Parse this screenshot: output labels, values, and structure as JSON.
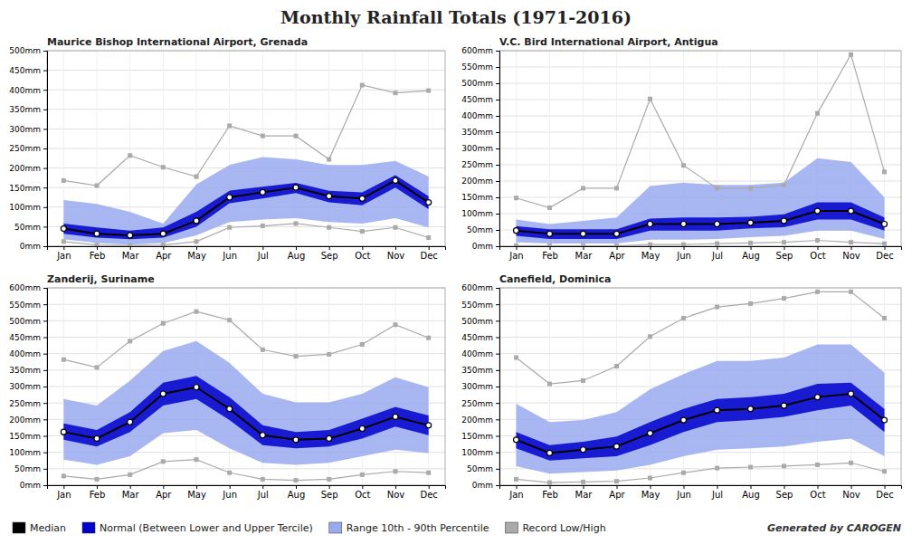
{
  "title": "Monthly Rainfall Totals (1971-2016)",
  "annotations": [
    "Generated by CAROGEN"
  ],
  "chart_data": [
    {
      "type": "line",
      "title": "Maurice Bishop International Airport, Grenada",
      "categories": [
        "Jan",
        "Feb",
        "Mar",
        "Apr",
        "May",
        "Jun",
        "Jul",
        "Aug",
        "Sep",
        "Oct",
        "Nov",
        "Dec"
      ],
      "ylim": [
        0,
        500
      ],
      "yticks": [
        {
          "value": 0,
          "label": "0mm"
        },
        {
          "value": 50,
          "label": "50mm"
        },
        {
          "value": 100,
          "label": "100mm"
        },
        {
          "value": 150,
          "label": "150mm"
        },
        {
          "value": 200,
          "label": "200mm"
        },
        {
          "value": 250,
          "label": "250mm"
        },
        {
          "value": 300,
          "label": "300mm"
        },
        {
          "value": 350,
          "label": "350mm"
        },
        {
          "value": 400,
          "label": "400mm"
        },
        {
          "value": 450,
          "label": "450mm"
        },
        {
          "value": 500,
          "label": "500mm"
        }
      ],
      "grid": true,
      "legend": "bottom",
      "series": [
        {
          "name": "Median",
          "color": "#000000",
          "type": "line",
          "marker": "circle",
          "values": [
            45,
            32,
            28,
            32,
            65,
            125,
            138,
            150,
            128,
            122,
            168,
            112
          ]
        },
        {
          "name": "Normal (Between Lower and Upper Tercile)",
          "color": "#0000cc",
          "type": "area",
          "values": [
            58,
            48,
            40,
            48,
            88,
            142,
            152,
            162,
            142,
            138,
            182,
            128
          ],
          "low": [
            32,
            22,
            18,
            22,
            50,
            110,
            122,
            136,
            112,
            105,
            150,
            95
          ]
        },
        {
          "name": "Range 10th - 90th Percentile",
          "color": "#99aaee",
          "type": "area",
          "values": [
            118,
            108,
            88,
            58,
            158,
            208,
            228,
            222,
            208,
            208,
            218,
            178
          ],
          "low": [
            18,
            8,
            4,
            8,
            28,
            62,
            68,
            72,
            62,
            58,
            72,
            48
          ]
        },
        {
          "name": "Record Low/High",
          "color": "#aaaaaa",
          "type": "line",
          "marker": "square",
          "values": [
            168,
            155,
            232,
            202,
            178,
            308,
            282,
            282,
            222,
            412,
            392,
            398
          ],
          "low": [
            12,
            3,
            2,
            3,
            12,
            48,
            52,
            58,
            48,
            38,
            48,
            22
          ]
        }
      ]
    },
    {
      "type": "line",
      "title": "V.C. Bird International Airport, Antigua",
      "categories": [
        "Jan",
        "Feb",
        "Mar",
        "Apr",
        "May",
        "Jun",
        "Jul",
        "Aug",
        "Sep",
        "Oct",
        "Nov",
        "Dec"
      ],
      "ylim": [
        0,
        600
      ],
      "yticks": [
        {
          "value": 0,
          "label": "0mm"
        },
        {
          "value": 50,
          "label": "50mm"
        },
        {
          "value": 100,
          "label": "100mm"
        },
        {
          "value": 150,
          "label": "150mm"
        },
        {
          "value": 200,
          "label": "200mm"
        },
        {
          "value": 250,
          "label": "250mm"
        },
        {
          "value": 300,
          "label": "300mm"
        },
        {
          "value": 350,
          "label": "350mm"
        },
        {
          "value": 400,
          "label": "400mm"
        },
        {
          "value": 450,
          "label": "450mm"
        },
        {
          "value": 500,
          "label": "500mm"
        },
        {
          "value": 550,
          "label": "550mm"
        },
        {
          "value": 600,
          "label": "600mm"
        }
      ],
      "grid": true,
      "series": [
        {
          "color": "#000000",
          "type": "line",
          "marker": "circle",
          "values": [
            48,
            38,
            38,
            38,
            68,
            68,
            68,
            72,
            78,
            108,
            108,
            68
          ]
        },
        {
          "color": "#0000cc",
          "type": "area",
          "values": [
            62,
            52,
            52,
            52,
            85,
            88,
            88,
            90,
            98,
            135,
            135,
            88
          ],
          "low": [
            32,
            22,
            22,
            22,
            48,
            48,
            48,
            55,
            58,
            82,
            82,
            48
          ]
        },
        {
          "color": "#99aaee",
          "type": "area",
          "values": [
            82,
            68,
            78,
            88,
            185,
            195,
            188,
            188,
            195,
            270,
            258,
            150
          ],
          "low": [
            12,
            8,
            8,
            8,
            20,
            20,
            22,
            28,
            32,
            48,
            48,
            22
          ]
        },
        {
          "color": "#aaaaaa",
          "type": "line",
          "marker": "square",
          "values": [
            148,
            118,
            178,
            178,
            452,
            248,
            178,
            178,
            188,
            408,
            588,
            228
          ],
          "low": [
            2,
            1,
            1,
            1,
            5,
            5,
            8,
            10,
            12,
            18,
            12,
            8
          ]
        }
      ]
    },
    {
      "type": "line",
      "title": "Zanderij, Suriname",
      "categories": [
        "Jan",
        "Feb",
        "Mar",
        "Apr",
        "May",
        "Jun",
        "Jul",
        "Aug",
        "Sep",
        "Oct",
        "Nov",
        "Dec"
      ],
      "ylim": [
        0,
        600
      ],
      "yticks": [
        {
          "value": 0,
          "label": "0mm"
        },
        {
          "value": 50,
          "label": "50mm"
        },
        {
          "value": 100,
          "label": "100mm"
        },
        {
          "value": 150,
          "label": "150mm"
        },
        {
          "value": 200,
          "label": "200mm"
        },
        {
          "value": 250,
          "label": "250mm"
        },
        {
          "value": 300,
          "label": "300mm"
        },
        {
          "value": 350,
          "label": "350mm"
        },
        {
          "value": 400,
          "label": "400mm"
        },
        {
          "value": 450,
          "label": "450mm"
        },
        {
          "value": 500,
          "label": "500mm"
        },
        {
          "value": 550,
          "label": "550mm"
        },
        {
          "value": 600,
          "label": "600mm"
        }
      ],
      "grid": true,
      "series": [
        {
          "color": "#000000",
          "type": "line",
          "marker": "circle",
          "values": [
            162,
            142,
            192,
            278,
            298,
            232,
            152,
            138,
            142,
            172,
            208,
            182
          ]
        },
        {
          "color": "#0000cc",
          "type": "area",
          "values": [
            188,
            168,
            222,
            312,
            332,
            268,
            182,
            162,
            168,
            202,
            238,
            212
          ],
          "low": [
            138,
            118,
            162,
            242,
            262,
            198,
            122,
            112,
            118,
            142,
            178,
            152
          ]
        },
        {
          "color": "#99aaee",
          "type": "area",
          "values": [
            262,
            242,
            318,
            408,
            438,
            372,
            278,
            252,
            252,
            278,
            328,
            298
          ],
          "low": [
            78,
            62,
            88,
            158,
            168,
            112,
            68,
            62,
            68,
            88,
            108,
            98
          ]
        },
        {
          "color": "#aaaaaa",
          "type": "line",
          "marker": "square",
          "values": [
            382,
            358,
            438,
            492,
            528,
            502,
            412,
            392,
            398,
            428,
            488,
            448
          ],
          "low": [
            28,
            18,
            32,
            72,
            78,
            38,
            18,
            15,
            18,
            32,
            42,
            38
          ]
        }
      ]
    },
    {
      "type": "line",
      "title": "Canefield, Dominica",
      "categories": [
        "Jan",
        "Feb",
        "Mar",
        "Apr",
        "May",
        "Jun",
        "Jul",
        "Aug",
        "Sep",
        "Oct",
        "Nov",
        "Dec"
      ],
      "ylim": [
        0,
        600
      ],
      "yticks": [
        {
          "value": 0,
          "label": "0mm"
        },
        {
          "value": 50,
          "label": "50mm"
        },
        {
          "value": 100,
          "label": "100mm"
        },
        {
          "value": 150,
          "label": "150mm"
        },
        {
          "value": 200,
          "label": "200mm"
        },
        {
          "value": 250,
          "label": "250mm"
        },
        {
          "value": 300,
          "label": "300mm"
        },
        {
          "value": 350,
          "label": "350mm"
        },
        {
          "value": 400,
          "label": "400mm"
        },
        {
          "value": 450,
          "label": "450mm"
        },
        {
          "value": 500,
          "label": "500mm"
        },
        {
          "value": 550,
          "label": "550mm"
        },
        {
          "value": 600,
          "label": "600mm"
        }
      ],
      "grid": true,
      "series": [
        {
          "color": "#000000",
          "type": "line",
          "marker": "circle",
          "values": [
            138,
            98,
            108,
            118,
            158,
            198,
            228,
            232,
            242,
            268,
            278,
            198
          ]
        },
        {
          "color": "#0000cc",
          "type": "area",
          "values": [
            162,
            122,
            132,
            148,
            192,
            232,
            262,
            268,
            278,
            308,
            312,
            232
          ],
          "low": [
            112,
            75,
            82,
            88,
            122,
            162,
            192,
            198,
            208,
            228,
            242,
            162
          ]
        },
        {
          "color": "#99aaee",
          "type": "area",
          "values": [
            248,
            192,
            198,
            222,
            292,
            338,
            378,
            378,
            388,
            428,
            428,
            342
          ],
          "low": [
            58,
            35,
            40,
            45,
            62,
            88,
            108,
            112,
            118,
            132,
            142,
            88
          ]
        },
        {
          "color": "#aaaaaa",
          "type": "line",
          "marker": "square",
          "values": [
            388,
            308,
            318,
            362,
            452,
            508,
            542,
            552,
            568,
            588,
            588,
            508
          ],
          "low": [
            18,
            8,
            10,
            12,
            22,
            38,
            52,
            55,
            58,
            62,
            68,
            42
          ]
        }
      ]
    }
  ]
}
